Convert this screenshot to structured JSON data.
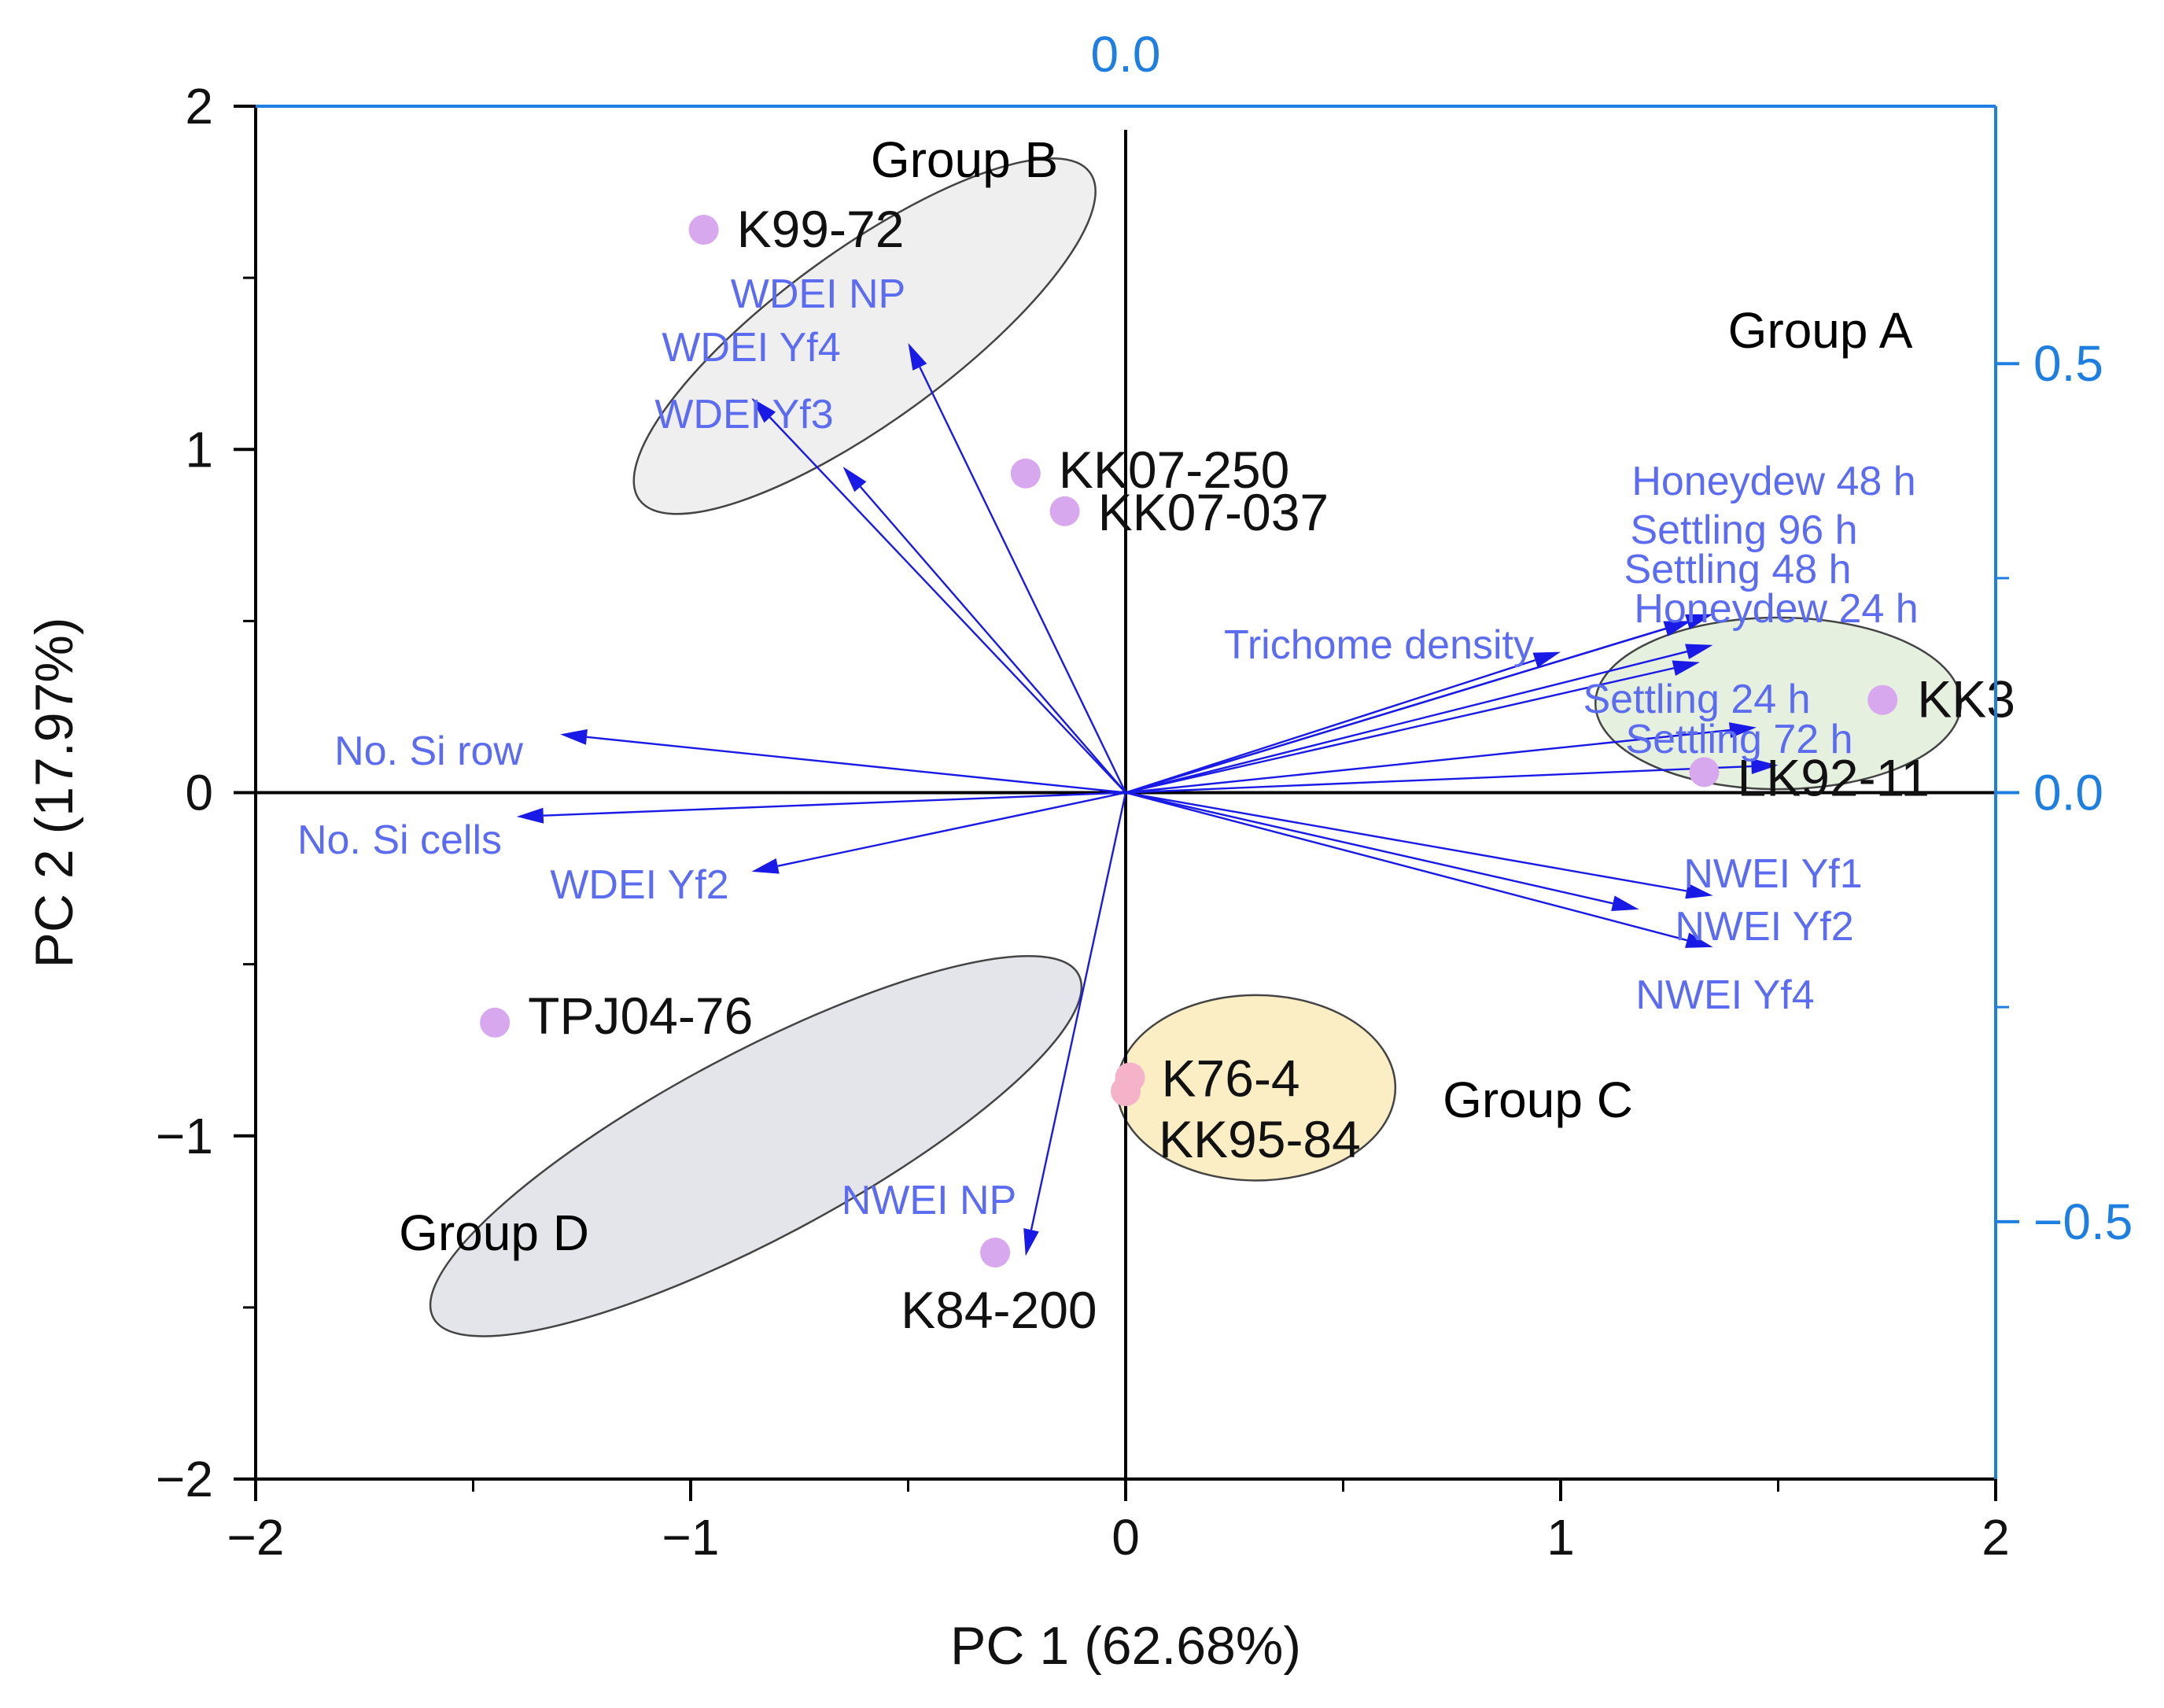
{
  "chart_data": {
    "type": "scatter",
    "subtype": "pca-biplot",
    "title": "",
    "xlabel": "PC 1 (62.68%)",
    "ylabel": "PC 2 (17.97%)",
    "xlim": [
      -2,
      2
    ],
    "ylim": [
      -2,
      2
    ],
    "x_ticks": [
      -2,
      -1,
      0,
      1,
      2
    ],
    "x_tick_labels": [
      "−2",
      "−1",
      "0",
      "1",
      "2"
    ],
    "y_ticks": [
      -2,
      -1,
      0,
      1,
      2
    ],
    "y_tick_labels": [
      "−2",
      "−1",
      "0",
      "1",
      "2"
    ],
    "top_axis": {
      "tick_labels": [
        "0.0"
      ],
      "ticks": [
        0.0
      ],
      "range": [
        -0.8,
        0.8
      ],
      "color": "#1f7fe0"
    },
    "right_axis": {
      "ticks": [
        0.5,
        0.0,
        -0.5
      ],
      "tick_labels": [
        "0.5",
        "0.0",
        "−0.5"
      ],
      "range": [
        -0.8,
        0.8
      ],
      "color": "#1f7fe0"
    },
    "grid": false,
    "colors": {
      "points": "#d8a8ee",
      "points_c": "#f4b3c8",
      "vectors": "#1a1ae6",
      "vector_labels": "#5c6cf0",
      "secondary_axis": "#1f7fe0"
    },
    "points": [
      {
        "label": "K99-72",
        "x": -0.97,
        "y": 1.64
      },
      {
        "label": "KK07-250",
        "x": -0.23,
        "y": 0.93
      },
      {
        "label": "KK07-037",
        "x": -0.14,
        "y": 0.82
      },
      {
        "label": "KK3",
        "x": 1.74,
        "y": 0.27
      },
      {
        "label": "LK92-11",
        "x": 1.33,
        "y": 0.06
      },
      {
        "label": "TPJ04-76",
        "x": -1.45,
        "y": -0.67
      },
      {
        "label": "K76-4",
        "x": 0.01,
        "y": -0.83
      },
      {
        "label": "KK95-84",
        "x": 0.0,
        "y": -0.87
      },
      {
        "label": "K84-200",
        "x": -0.3,
        "y": -1.34
      }
    ],
    "loadings": [
      {
        "label": "WDEI NP",
        "x": -0.5,
        "y": 1.31
      },
      {
        "label": "WDEI Yf4",
        "x": -0.86,
        "y": 1.15
      },
      {
        "label": "WDEI Yf3",
        "x": -0.65,
        "y": 0.95
      },
      {
        "label": "No. Si row",
        "x": -1.3,
        "y": 0.17
      },
      {
        "label": "No. Si cells",
        "x": -1.4,
        "y": -0.07
      },
      {
        "label": "WDEI Yf2",
        "x": -0.86,
        "y": -0.23
      },
      {
        "label": "Trichome density",
        "x": 1.0,
        "y": 0.41
      },
      {
        "label": "Honeydew 48 h",
        "x": 1.35,
        "y": 0.52
      },
      {
        "label": "Settling 96 h",
        "x": 1.3,
        "y": 0.5
      },
      {
        "label": "Settling 48 h",
        "x": 1.35,
        "y": 0.43
      },
      {
        "label": "Honeydew 24 h",
        "x": 1.32,
        "y": 0.38
      },
      {
        "label": "Settling 24 h",
        "x": 1.45,
        "y": 0.19
      },
      {
        "label": "Settling 72 h",
        "x": 1.5,
        "y": 0.08
      },
      {
        "label": "NWEI Yf1",
        "x": 1.35,
        "y": -0.3
      },
      {
        "label": "NWEI Yf2",
        "x": 1.18,
        "y": -0.34
      },
      {
        "label": "NWEI Yf4",
        "x": 1.35,
        "y": -0.45
      },
      {
        "label": "NWEI NP",
        "x": -0.23,
        "y": -1.35
      }
    ],
    "groups": [
      {
        "name": "Group A",
        "fill": "#e6f0df",
        "cx": 1.5,
        "cy": 0.26,
        "rx": 0.42,
        "ry": 0.25,
        "rot": 0
      },
      {
        "name": "Group B",
        "fill": "#efefef",
        "cx": -0.6,
        "cy": 1.33,
        "rx": 0.64,
        "ry": 0.25,
        "rot": 36
      },
      {
        "name": "Group C",
        "fill": "#fbedc4",
        "cx": 0.3,
        "cy": -0.86,
        "rx": 0.32,
        "ry": 0.27,
        "rot": 0
      },
      {
        "name": "Group D",
        "fill": "#e3e5ea",
        "cx": -0.85,
        "cy": -1.03,
        "rx": 0.84,
        "ry": 0.27,
        "rot": 28
      }
    ]
  }
}
